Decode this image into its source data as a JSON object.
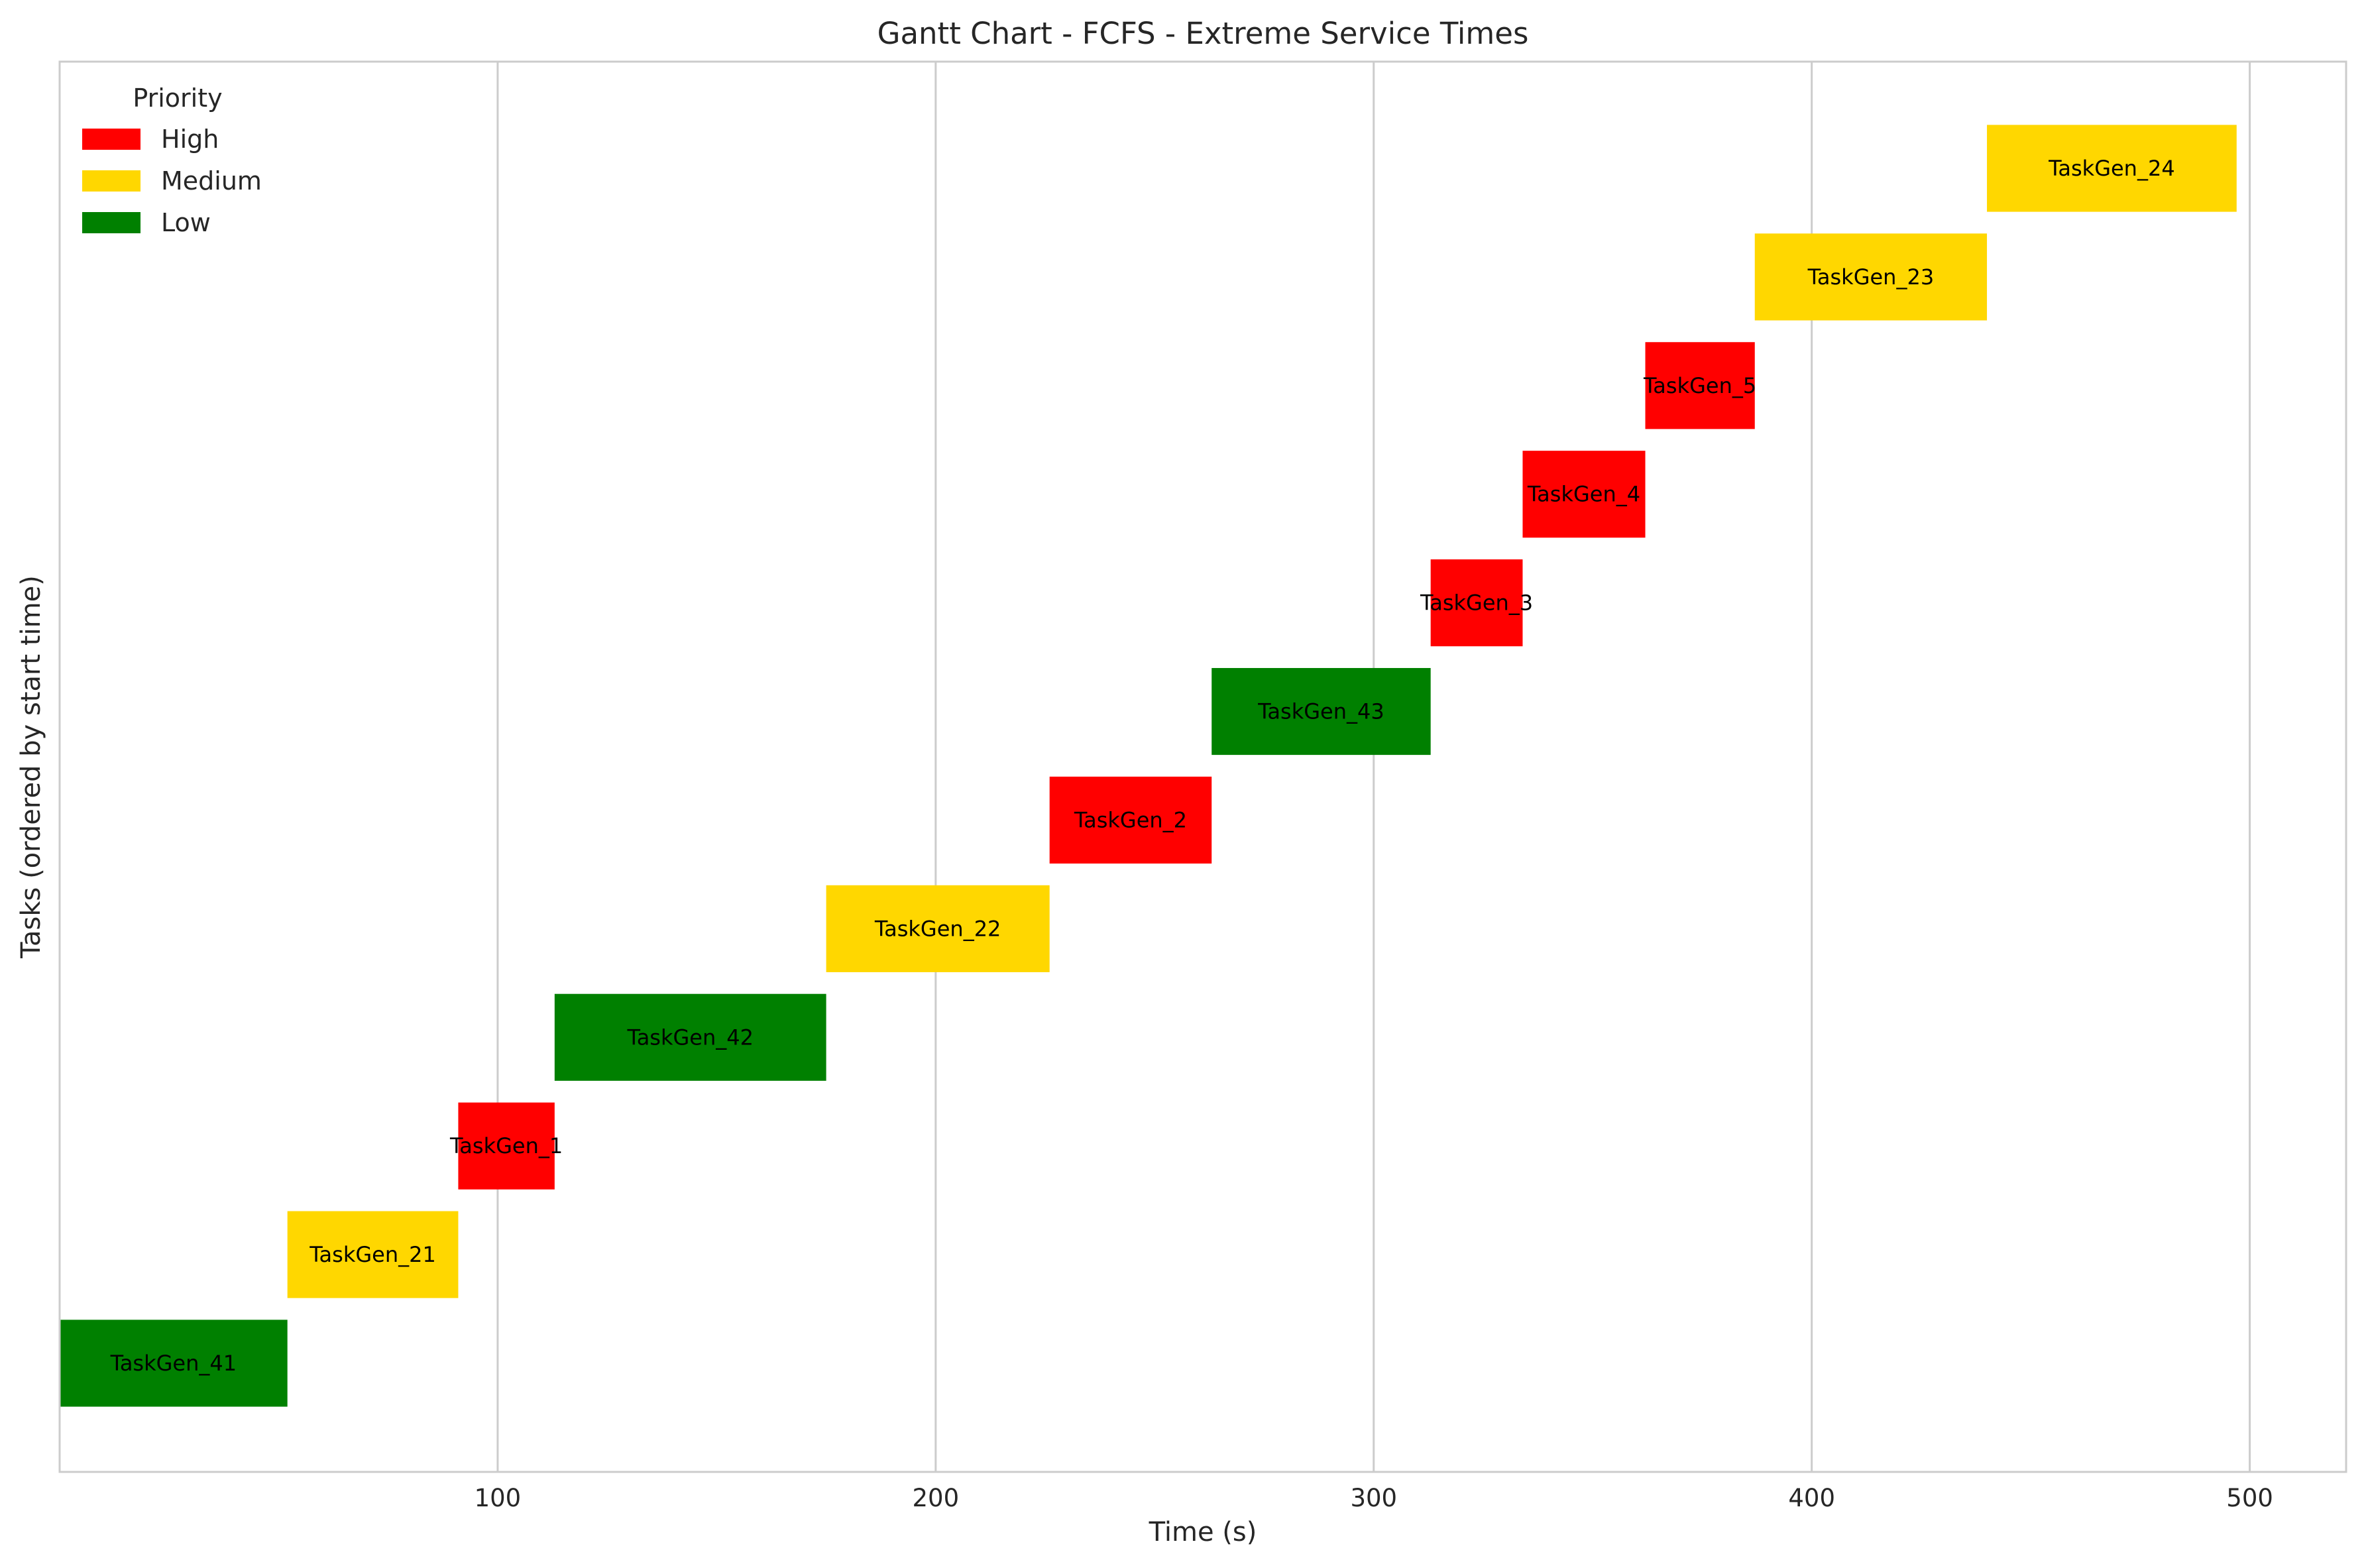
{
  "chart_data": {
    "type": "gantt",
    "title": "Gantt Chart - FCFS - Extreme Service Times",
    "xlabel": "Time (s)",
    "ylabel": "Tasks (ordered by start time)",
    "xlim": [
      0,
      522
    ],
    "xticks": [
      100,
      200,
      300,
      400,
      500
    ],
    "grid": "vertical",
    "legend": {
      "title": "Priority",
      "position": "top-left",
      "entries": [
        {
          "label": "High",
          "color": "#ff0000"
        },
        {
          "label": "Medium",
          "color": "#ffd700"
        },
        {
          "label": "Low",
          "color": "#008000"
        }
      ]
    },
    "colors": {
      "High": "#ff0000",
      "Medium": "#ffd700",
      "Low": "#008000"
    },
    "tasks": [
      {
        "name": "TaskGen_41",
        "priority": "Low",
        "start": 0,
        "end": 52
      },
      {
        "name": "TaskGen_21",
        "priority": "Medium",
        "start": 52,
        "end": 91
      },
      {
        "name": "TaskGen_1",
        "priority": "High",
        "start": 91,
        "end": 113
      },
      {
        "name": "TaskGen_42",
        "priority": "Low",
        "start": 113,
        "end": 175
      },
      {
        "name": "TaskGen_22",
        "priority": "Medium",
        "start": 175,
        "end": 226
      },
      {
        "name": "TaskGen_2",
        "priority": "High",
        "start": 226,
        "end": 263
      },
      {
        "name": "TaskGen_43",
        "priority": "Low",
        "start": 263,
        "end": 313
      },
      {
        "name": "TaskGen_3",
        "priority": "High",
        "start": 313,
        "end": 334
      },
      {
        "name": "TaskGen_4",
        "priority": "High",
        "start": 334,
        "end": 362
      },
      {
        "name": "TaskGen_5",
        "priority": "High",
        "start": 362,
        "end": 387
      },
      {
        "name": "TaskGen_23",
        "priority": "Medium",
        "start": 387,
        "end": 440
      },
      {
        "name": "TaskGen_24",
        "priority": "Medium",
        "start": 440,
        "end": 497
      }
    ]
  }
}
